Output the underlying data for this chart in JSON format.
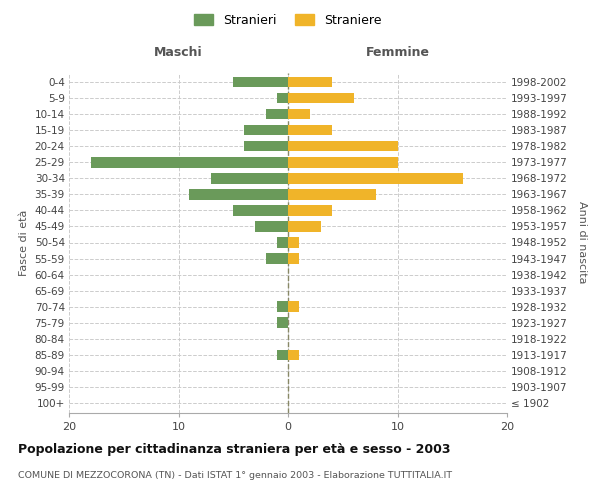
{
  "age_groups": [
    "100+",
    "95-99",
    "90-94",
    "85-89",
    "80-84",
    "75-79",
    "70-74",
    "65-69",
    "60-64",
    "55-59",
    "50-54",
    "45-49",
    "40-44",
    "35-39",
    "30-34",
    "25-29",
    "20-24",
    "15-19",
    "10-14",
    "5-9",
    "0-4"
  ],
  "birth_years": [
    "≤ 1902",
    "1903-1907",
    "1908-1912",
    "1913-1917",
    "1918-1922",
    "1923-1927",
    "1928-1932",
    "1933-1937",
    "1938-1942",
    "1943-1947",
    "1948-1952",
    "1953-1957",
    "1958-1962",
    "1963-1967",
    "1968-1972",
    "1973-1977",
    "1978-1982",
    "1983-1987",
    "1988-1992",
    "1993-1997",
    "1998-2002"
  ],
  "maschi": [
    0,
    0,
    0,
    1,
    0,
    1,
    1,
    0,
    0,
    2,
    1,
    3,
    5,
    9,
    7,
    18,
    4,
    4,
    2,
    1,
    5
  ],
  "femmine": [
    0,
    0,
    0,
    1,
    0,
    0,
    1,
    0,
    0,
    1,
    1,
    3,
    4,
    8,
    16,
    10,
    10,
    4,
    2,
    6,
    4
  ],
  "maschi_color": "#6a9a5a",
  "femmine_color": "#f0b429",
  "background_color": "#ffffff",
  "grid_color": "#cccccc",
  "title": "Popolazione per cittadinanza straniera per età e sesso - 2003",
  "subtitle": "COMUNE DI MEZZOCORONA (TN) - Dati ISTAT 1° gennaio 2003 - Elaborazione TUTTITALIA.IT",
  "xlabel_left": "Maschi",
  "xlabel_right": "Femmine",
  "ylabel_left": "Fasce di età",
  "ylabel_right": "Anni di nascita",
  "legend_maschi": "Stranieri",
  "legend_femmine": "Straniere",
  "xlim": 20
}
